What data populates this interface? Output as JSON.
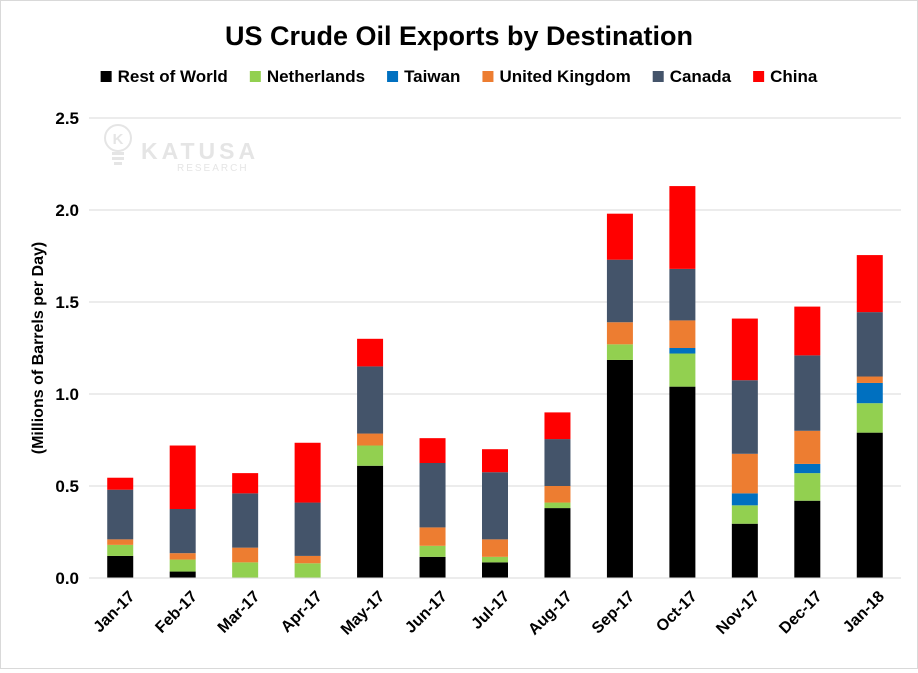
{
  "chart_data": {
    "type": "bar",
    "stacked": true,
    "title": "US Crude Oil Exports by Destination",
    "xlabel": "",
    "ylabel": "(Millions of Barrels per Day)",
    "ylim": [
      0,
      2.5
    ],
    "yticks": [
      "0.0",
      "0.5",
      "1.0",
      "1.5",
      "2.0",
      "2.5"
    ],
    "grid": true,
    "legend_position": "top",
    "watermark": {
      "brand": "KATUSA",
      "sub": "RESEARCH"
    },
    "categories": [
      "Jan-17",
      "Feb-17",
      "Mar-17",
      "Apr-17",
      "May-17",
      "Jun-17",
      "Jul-17",
      "Aug-17",
      "Sep-17",
      "Oct-17",
      "Nov-17",
      "Dec-17",
      "Jan-18"
    ],
    "series": [
      {
        "name": "Rest of World",
        "color": "#000000",
        "values": [
          0.12,
          0.035,
          0.0,
          0.0,
          0.61,
          0.115,
          0.085,
          0.38,
          1.185,
          1.04,
          0.295,
          0.42,
          0.79
        ]
      },
      {
        "name": "Netherlands",
        "color": "#92d050",
        "values": [
          0.06,
          0.065,
          0.085,
          0.08,
          0.11,
          0.06,
          0.03,
          0.03,
          0.085,
          0.18,
          0.1,
          0.15,
          0.16
        ]
      },
      {
        "name": "Taiwan",
        "color": "#0070c0",
        "values": [
          0.0,
          0.0,
          0.0,
          0.0,
          0.0,
          0.0,
          0.0,
          0.0,
          0.0,
          0.03,
          0.065,
          0.05,
          0.11
        ]
      },
      {
        "name": "United Kingdom",
        "color": "#ed7d31",
        "values": [
          0.03,
          0.035,
          0.08,
          0.04,
          0.065,
          0.1,
          0.095,
          0.09,
          0.12,
          0.15,
          0.215,
          0.18,
          0.035
        ]
      },
      {
        "name": "Canada",
        "color": "#44546a",
        "values": [
          0.27,
          0.24,
          0.295,
          0.29,
          0.365,
          0.35,
          0.365,
          0.255,
          0.34,
          0.28,
          0.4,
          0.41,
          0.35
        ]
      },
      {
        "name": "China",
        "color": "#ff0000",
        "values": [
          0.065,
          0.345,
          0.11,
          0.325,
          0.15,
          0.135,
          0.125,
          0.145,
          0.25,
          0.45,
          0.335,
          0.265,
          0.31
        ]
      }
    ]
  }
}
